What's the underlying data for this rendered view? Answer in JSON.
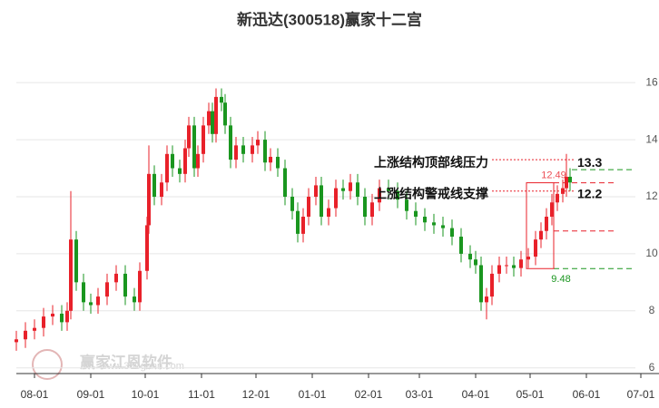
{
  "chart_data": {
    "type": "candlestick",
    "title": "新迅达(300518)赢家十二宫",
    "x": [
      -10,
      -5,
      0,
      5,
      10,
      15,
      18,
      20,
      23,
      27,
      31,
      35,
      40,
      45,
      50,
      55,
      58,
      62,
      63,
      66,
      70,
      73,
      76,
      80,
      83,
      85,
      88,
      90,
      93,
      96,
      98,
      100,
      103,
      105,
      108,
      111,
      115,
      120,
      123,
      127,
      130,
      134,
      138,
      142,
      145,
      148,
      151,
      155,
      158,
      162,
      166,
      170,
      174,
      178,
      182,
      186,
      190,
      195,
      200,
      205,
      210,
      215,
      220,
      225,
      230,
      235,
      240,
      243,
      246,
      249,
      252,
      256,
      260,
      264,
      268,
      272,
      276,
      279,
      282,
      285,
      288,
      291,
      293,
      295
    ],
    "open": [
      6.9,
      7.0,
      7.3,
      7.4,
      7.8,
      7.9,
      7.6,
      8.0,
      10.5,
      9.0,
      8.3,
      8.2,
      8.5,
      9.0,
      9.3,
      8.5,
      8.3,
      9.4,
      11.0,
      12.8,
      12.0,
      12.5,
      13.5,
      13.0,
      12.8,
      13.7,
      14.5,
      13.0,
      13.5,
      14.5,
      15.0,
      14.2,
      15.5,
      15.3,
      14.5,
      13.3,
      13.8,
      13.5,
      13.8,
      14.0,
      13.2,
      13.4,
      13.0,
      12.0,
      11.5,
      10.7,
      11.3,
      12.0,
      12.4,
      11.3,
      11.6,
      12.3,
      12.2,
      12.5,
      12.0,
      11.3,
      11.8,
      12.3,
      12.2,
      11.9,
      11.5,
      11.3,
      11.1,
      11.0,
      10.9,
      10.6,
      10.0,
      9.8,
      9.6,
      8.3,
      8.5,
      9.3,
      9.6,
      9.6,
      9.5,
      9.8,
      9.9,
      10.5,
      10.8,
      11.3,
      11.8,
      12.1,
      12.3,
      12.7
    ],
    "high": [
      7.3,
      7.6,
      7.7,
      8.1,
      8.2,
      8.2,
      8.3,
      12.2,
      10.8,
      9.3,
      8.6,
      8.8,
      9.3,
      9.6,
      9.6,
      8.8,
      9.7,
      11.3,
      13.8,
      13.1,
      12.8,
      13.8,
      13.8,
      13.3,
      14.0,
      14.8,
      14.8,
      13.8,
      14.8,
      15.3,
      15.3,
      15.8,
      15.8,
      15.6,
      14.8,
      14.1,
      14.1,
      14.1,
      14.3,
      14.3,
      13.7,
      13.7,
      13.3,
      12.3,
      11.8,
      11.6,
      12.3,
      12.7,
      12.7,
      11.9,
      12.6,
      12.6,
      12.8,
      12.8,
      12.3,
      12.1,
      12.6,
      12.6,
      12.5,
      12.2,
      11.8,
      11.6,
      11.4,
      11.3,
      11.2,
      10.9,
      10.3,
      10.1,
      9.9,
      8.8,
      9.6,
      9.9,
      9.9,
      9.9,
      10.1,
      10.2,
      10.8,
      11.1,
      11.6,
      12.1,
      12.4,
      12.6,
      13.5,
      13.0
    ],
    "low": [
      6.6,
      6.7,
      7.0,
      7.1,
      7.5,
      7.3,
      7.3,
      7.7,
      8.7,
      8.0,
      7.9,
      7.9,
      8.2,
      8.7,
      8.2,
      8.0,
      8.0,
      9.1,
      10.7,
      11.7,
      11.7,
      12.2,
      12.7,
      12.5,
      12.5,
      13.4,
      12.7,
      12.7,
      13.2,
      14.2,
      13.9,
      13.9,
      15.0,
      14.2,
      13.0,
      13.0,
      13.2,
      13.2,
      13.5,
      12.9,
      12.9,
      12.7,
      11.7,
      11.2,
      10.4,
      10.4,
      11.0,
      11.7,
      11.0,
      11.0,
      11.3,
      11.9,
      11.9,
      11.7,
      11.0,
      11.0,
      11.5,
      11.9,
      11.6,
      11.2,
      11.0,
      10.8,
      10.7,
      10.6,
      10.3,
      9.7,
      9.5,
      9.3,
      8.0,
      7.7,
      8.2,
      9.0,
      9.3,
      9.2,
      9.2,
      9.5,
      9.6,
      10.2,
      10.5,
      11.0,
      11.5,
      11.8,
      12.0,
      12.2
    ],
    "close": [
      7.0,
      7.3,
      7.4,
      7.8,
      7.9,
      7.6,
      8.0,
      10.5,
      9.0,
      8.3,
      8.2,
      8.5,
      9.0,
      9.3,
      8.5,
      8.3,
      9.4,
      11.0,
      12.8,
      12.0,
      12.5,
      13.5,
      13.0,
      12.8,
      13.7,
      14.5,
      13.0,
      13.5,
      14.5,
      15.0,
      14.2,
      15.5,
      15.3,
      14.5,
      13.3,
      13.8,
      13.5,
      13.8,
      14.0,
      13.2,
      13.4,
      13.0,
      12.0,
      11.5,
      10.7,
      11.3,
      12.0,
      12.4,
      11.3,
      11.6,
      12.3,
      12.2,
      12.5,
      12.0,
      11.3,
      11.8,
      12.3,
      12.2,
      11.9,
      11.5,
      11.3,
      11.1,
      11.0,
      10.9,
      10.6,
      10.0,
      9.8,
      9.6,
      8.3,
      8.5,
      9.3,
      9.6,
      9.6,
      9.5,
      9.8,
      9.9,
      10.5,
      10.8,
      11.3,
      11.8,
      12.1,
      12.3,
      12.7,
      12.5
    ],
    "up_color": "#e8212a",
    "down_color": "#1a961f",
    "xlim": [
      -10,
      331
    ],
    "xticks": [
      {
        "value": 0,
        "label": "08-01"
      },
      {
        "value": 31,
        "label": "09-01"
      },
      {
        "value": 61,
        "label": "10-01"
      },
      {
        "value": 92,
        "label": "11-01"
      },
      {
        "value": 122,
        "label": "12-01"
      },
      {
        "value": 153,
        "label": "01-01"
      },
      {
        "value": 184,
        "label": "02-01"
      },
      {
        "value": 212,
        "label": "03-01"
      },
      {
        "value": 243,
        "label": "04-01"
      },
      {
        "value": 273,
        "label": "05-01"
      },
      {
        "value": 304,
        "label": "06-01"
      },
      {
        "value": 334,
        "label": "07-01"
      }
    ],
    "ylim": [
      5.8,
      17.5
    ],
    "yticks": [
      6,
      8,
      10,
      12,
      14,
      16
    ],
    "grid": true,
    "levels": [
      {
        "text": "上涨结构顶部线压力",
        "value": 13.3,
        "color": "#e8212a"
      },
      {
        "text": "上涨结构警戒线支撑",
        "value": 12.2,
        "color": "#e8212a"
      }
    ],
    "box": {
      "x": [
        271,
        286
      ],
      "top": 12.49,
      "bottom": 9.48,
      "color": "#e8212a"
    },
    "lines": [
      {
        "value": 12.95,
        "color": "#1a961f",
        "x": [
          296,
          331
        ]
      },
      {
        "value": 12.49,
        "color": "#e8212a",
        "x": [
          286,
          321
        ]
      },
      {
        "value": 10.8,
        "color": "#e8212a",
        "x": [
          286,
          321
        ]
      },
      {
        "value": 9.48,
        "color": "#1a961f",
        "x": [
          286,
          331
        ]
      }
    ],
    "watermark": {
      "brand": "赢家江恩软件",
      "site": "www.360gann.com"
    }
  }
}
